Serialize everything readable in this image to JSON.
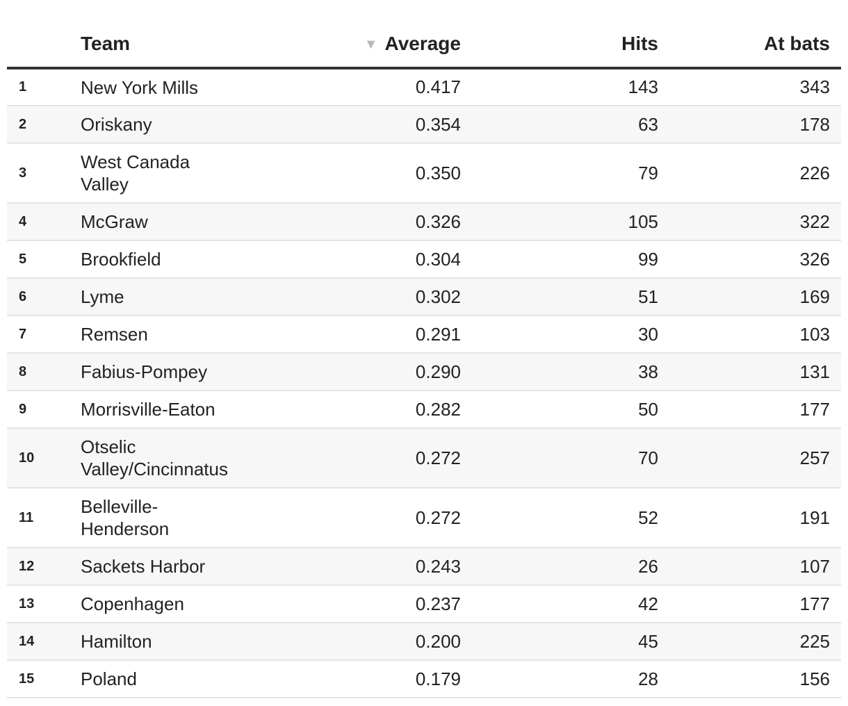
{
  "chart_data": {
    "type": "table",
    "columns": {
      "rank": "",
      "team": "Team",
      "average": "Average",
      "hits": "Hits",
      "at_bats": "At bats"
    },
    "sort": {
      "column": "Average",
      "direction": "descending",
      "icon": "sort-down-triangle-icon"
    },
    "rows": [
      {
        "rank": "1",
        "team": "New York Mills",
        "average": "0.417",
        "hits": "143",
        "at_bats": "343"
      },
      {
        "rank": "2",
        "team": "Oriskany",
        "average": "0.354",
        "hits": "63",
        "at_bats": "178"
      },
      {
        "rank": "3",
        "team": "West Canada Valley",
        "average": "0.350",
        "hits": "79",
        "at_bats": "226"
      },
      {
        "rank": "4",
        "team": "McGraw",
        "average": "0.326",
        "hits": "105",
        "at_bats": "322"
      },
      {
        "rank": "5",
        "team": "Brookfield",
        "average": "0.304",
        "hits": "99",
        "at_bats": "326"
      },
      {
        "rank": "6",
        "team": "Lyme",
        "average": "0.302",
        "hits": "51",
        "at_bats": "169"
      },
      {
        "rank": "7",
        "team": "Remsen",
        "average": "0.291",
        "hits": "30",
        "at_bats": "103"
      },
      {
        "rank": "8",
        "team": "Fabius-Pompey",
        "average": "0.290",
        "hits": "38",
        "at_bats": "131"
      },
      {
        "rank": "9",
        "team": "Morrisville-Eaton",
        "average": "0.282",
        "hits": "50",
        "at_bats": "177"
      },
      {
        "rank": "10",
        "team": "Otselic Valley/Cincinnatus",
        "average": "0.272",
        "hits": "70",
        "at_bats": "257"
      },
      {
        "rank": "11",
        "team": "Belleville-Henderson",
        "average": "0.272",
        "hits": "52",
        "at_bats": "191"
      },
      {
        "rank": "12",
        "team": "Sackets Harbor",
        "average": "0.243",
        "hits": "26",
        "at_bats": "107"
      },
      {
        "rank": "13",
        "team": "Copenhagen",
        "average": "0.237",
        "hits": "42",
        "at_bats": "177"
      },
      {
        "rank": "14",
        "team": "Hamilton",
        "average": "0.200",
        "hits": "45",
        "at_bats": "225"
      },
      {
        "rank": "15",
        "team": "Poland",
        "average": "0.179",
        "hits": "28",
        "at_bats": "156"
      }
    ]
  }
}
